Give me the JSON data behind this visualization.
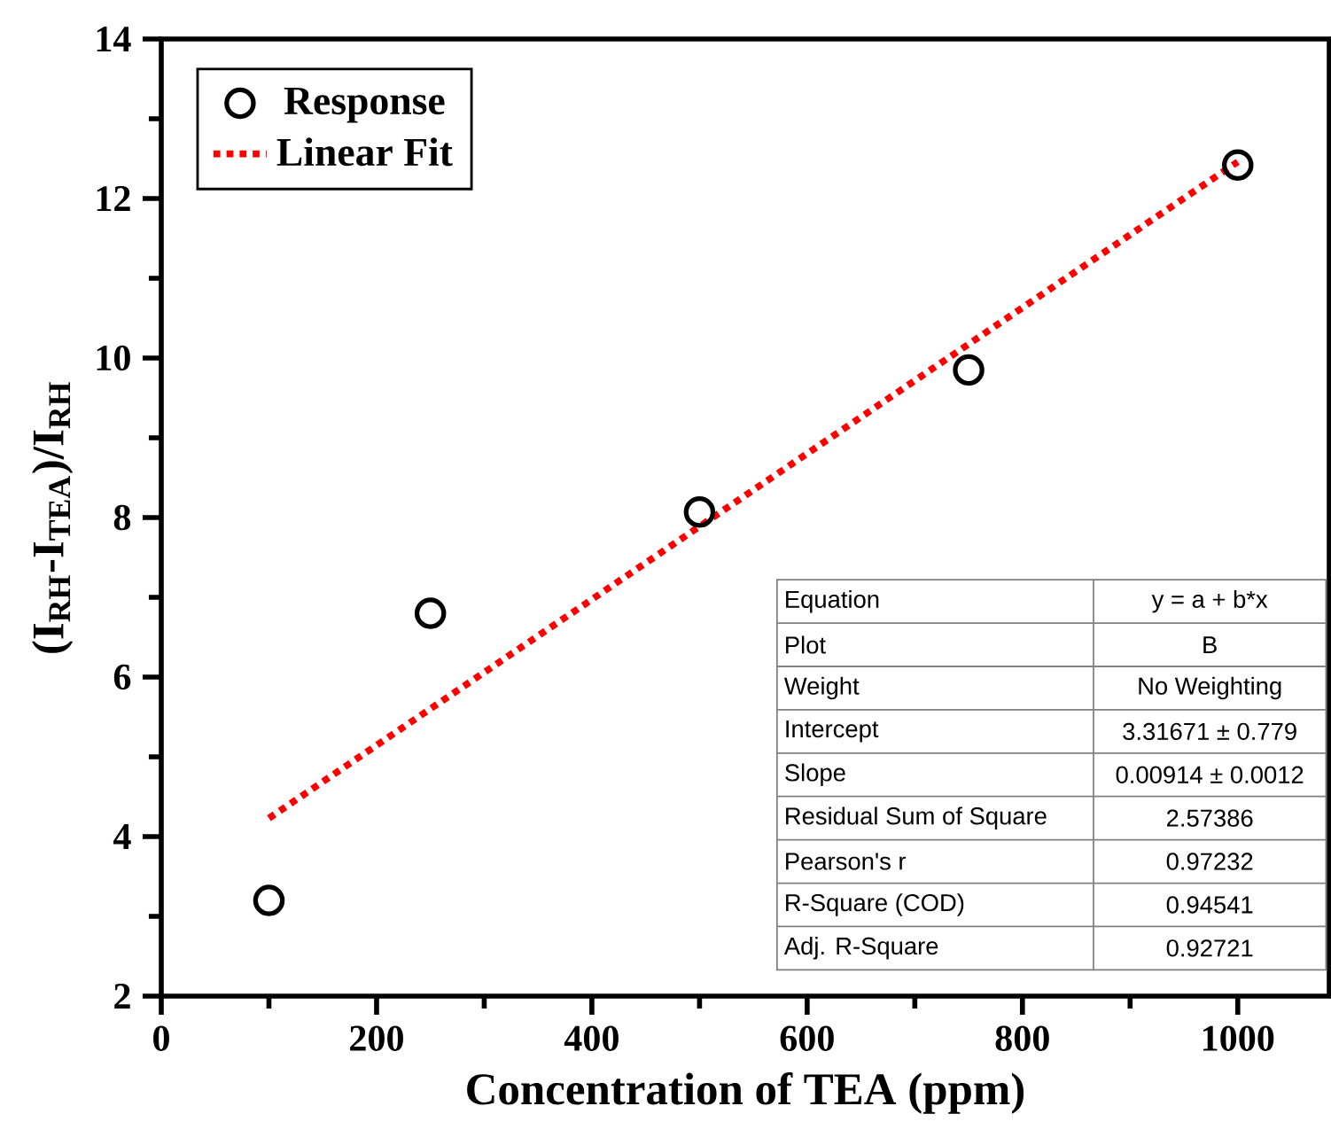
{
  "chart_data": {
    "type": "scatter",
    "xlabel": "Concentration of TEA (ppm)",
    "ylabel": "(I$_{RH}$-I$_{TEA}$)/I$_{RH}$",
    "series": [
      {
        "name": "Response",
        "color": "#000000",
        "marker": "circle",
        "x": [
          100,
          250,
          500,
          750,
          1000
        ],
        "values": [
          3.2,
          6.8,
          8.07,
          9.85,
          12.42
        ]
      },
      {
        "name": "Linear Fit",
        "type": "line",
        "color": "#ff0000",
        "line_style": "dotted",
        "marker": "none",
        "x": [
          100,
          1000
        ],
        "values": [
          4.23,
          12.46
        ]
      }
    ],
    "xlim": [
      0,
      1085
    ],
    "ylim": [
      2,
      14
    ],
    "xticks": [
      0,
      200,
      400,
      600,
      800,
      1000
    ],
    "yticks": [
      2,
      4,
      6,
      8,
      10,
      12,
      14
    ],
    "legend": "top left",
    "grid": false,
    "annotations": [
      "Equation",
      "y = a + b*x",
      "Plot",
      "B",
      "Weight",
      "No Weighting",
      "Intercept",
      "3.31671 ± 0.779",
      "Slope",
      "0.00914 ± 0.0012",
      "Residual Sum of Square",
      "2.57386",
      "Pearson's r",
      "0.97232",
      "R-Square (COD)",
      "0.94541",
      "Adj. R-Square",
      "0.92721"
    ]
  }
}
